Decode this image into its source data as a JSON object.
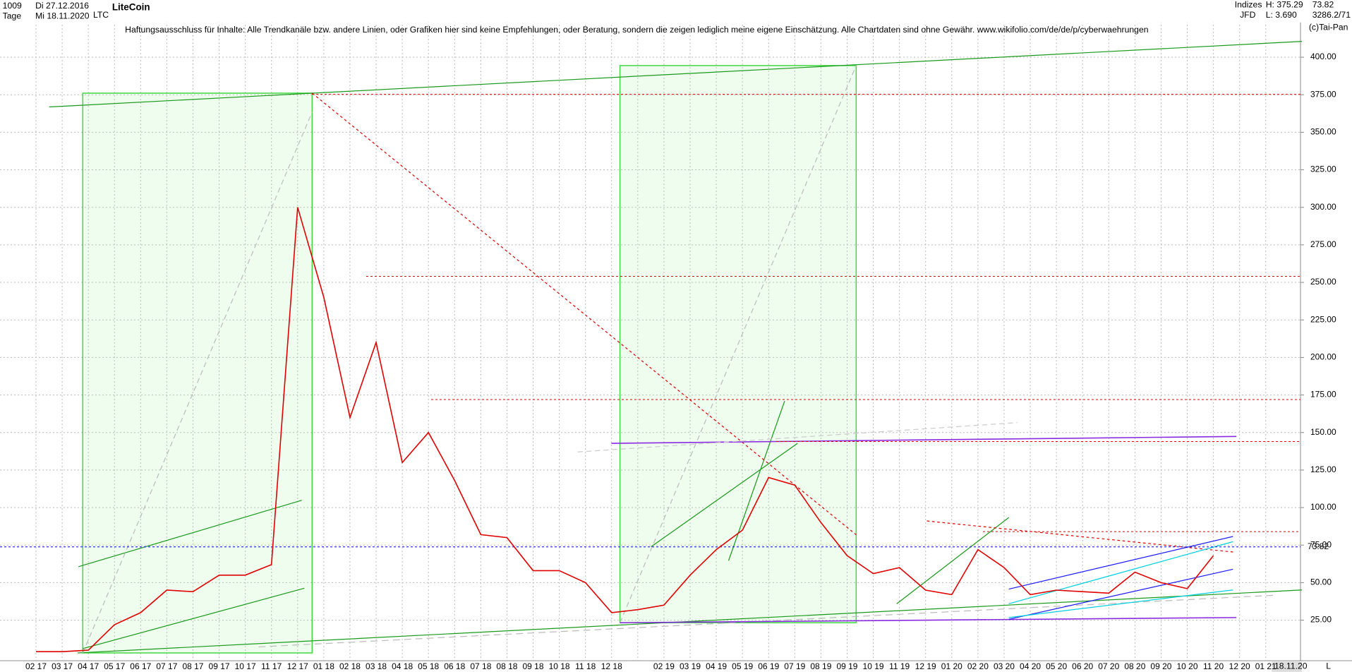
{
  "header": {
    "count": "1009",
    "interval": "Tage",
    "start_date": "Di 27.12.2016",
    "end_date": "Mi 18.11.2020",
    "symbol": "LTC",
    "exchange": "Indizes",
    "broker": "JFD",
    "high": "H: 375.29",
    "low": "L: 3.690",
    "last": "73.82",
    "info": "3286.2/71",
    "copyright": "(c)Tai-Pan",
    "bottom_date": "18.11.20",
    "scale_mode": "L"
  },
  "chart_data": {
    "type": "line",
    "title": "LiteCoin",
    "annotation": "Haftungsausschluss für Inhalte: Alle Trendkanäle bzw. andere Linien, oder Grafiken hier sind keine Empfehlungen, oder Beratung, sondern die zeigen lediglich meine eigene Einschätzung. Alle Chartdaten sind ohne Gewähr.  www.wikifolio.com/de/de/p/cyberwaehrungen",
    "categories": [
      "02 17",
      "03 17",
      "04 17",
      "05 17",
      "06 17",
      "07 17",
      "08 17",
      "09 17",
      "10 17",
      "11 17",
      "12 17",
      "01 18",
      "02 18",
      "03 18",
      "04 18",
      "05 18",
      "06 18",
      "07 18",
      "08 18",
      "09 18",
      "10 18",
      "11 18",
      "12 18",
      null,
      "02 19",
      "03 19",
      "04 19",
      "05 19",
      "06 19",
      "07 19",
      "08 19",
      "09 19",
      "10 19",
      "11 19",
      "12 19",
      "01 20",
      "02 20",
      "03 20",
      "04 20",
      "05 20",
      "06 20",
      "07 20",
      "08 20",
      "09 20",
      "10 20",
      "11 20",
      "12 20",
      "01 21"
    ],
    "values": [
      4,
      4,
      5,
      22,
      30,
      45,
      44,
      55,
      55,
      62,
      300,
      240,
      160,
      210,
      130,
      150,
      118,
      82,
      80,
      58,
      58,
      50,
      30,
      32,
      35,
      55,
      72,
      85,
      120,
      115,
      90,
      68,
      56,
      60,
      45,
      42,
      72,
      60,
      42,
      45,
      44,
      43,
      57,
      50,
      46,
      68,
      null,
      null
    ],
    "color": "#e00000",
    "last_price": 73.82,
    "last_price_color": "#0000dd",
    "levels": [
      375.29,
      254,
      172,
      144,
      84
    ],
    "level_color": "#e00000",
    "ylim": [
      -2,
      424
    ],
    "yticks": [
      {
        "value": 25,
        "label": "25.00"
      },
      {
        "value": 50,
        "label": "50.00"
      },
      {
        "value": 75,
        "label": "75.00"
      },
      {
        "value": 100,
        "label": "100.00"
      },
      {
        "value": 125,
        "label": "125.00"
      },
      {
        "value": 150,
        "label": "150.00"
      },
      {
        "value": 175,
        "label": "175.00"
      },
      {
        "value": 200,
        "label": "200.00"
      },
      {
        "value": 225,
        "label": "225.00"
      },
      {
        "value": 250,
        "label": "250.00"
      },
      {
        "value": 275,
        "label": "275.00"
      },
      {
        "value": 300,
        "label": "300.00"
      },
      {
        "value": 325,
        "label": "325.00"
      },
      {
        "value": 350,
        "label": "350.00"
      },
      {
        "value": 375,
        "label": "375.00"
      },
      {
        "value": 400,
        "label": "400.00"
      }
    ],
    "grid": true
  }
}
